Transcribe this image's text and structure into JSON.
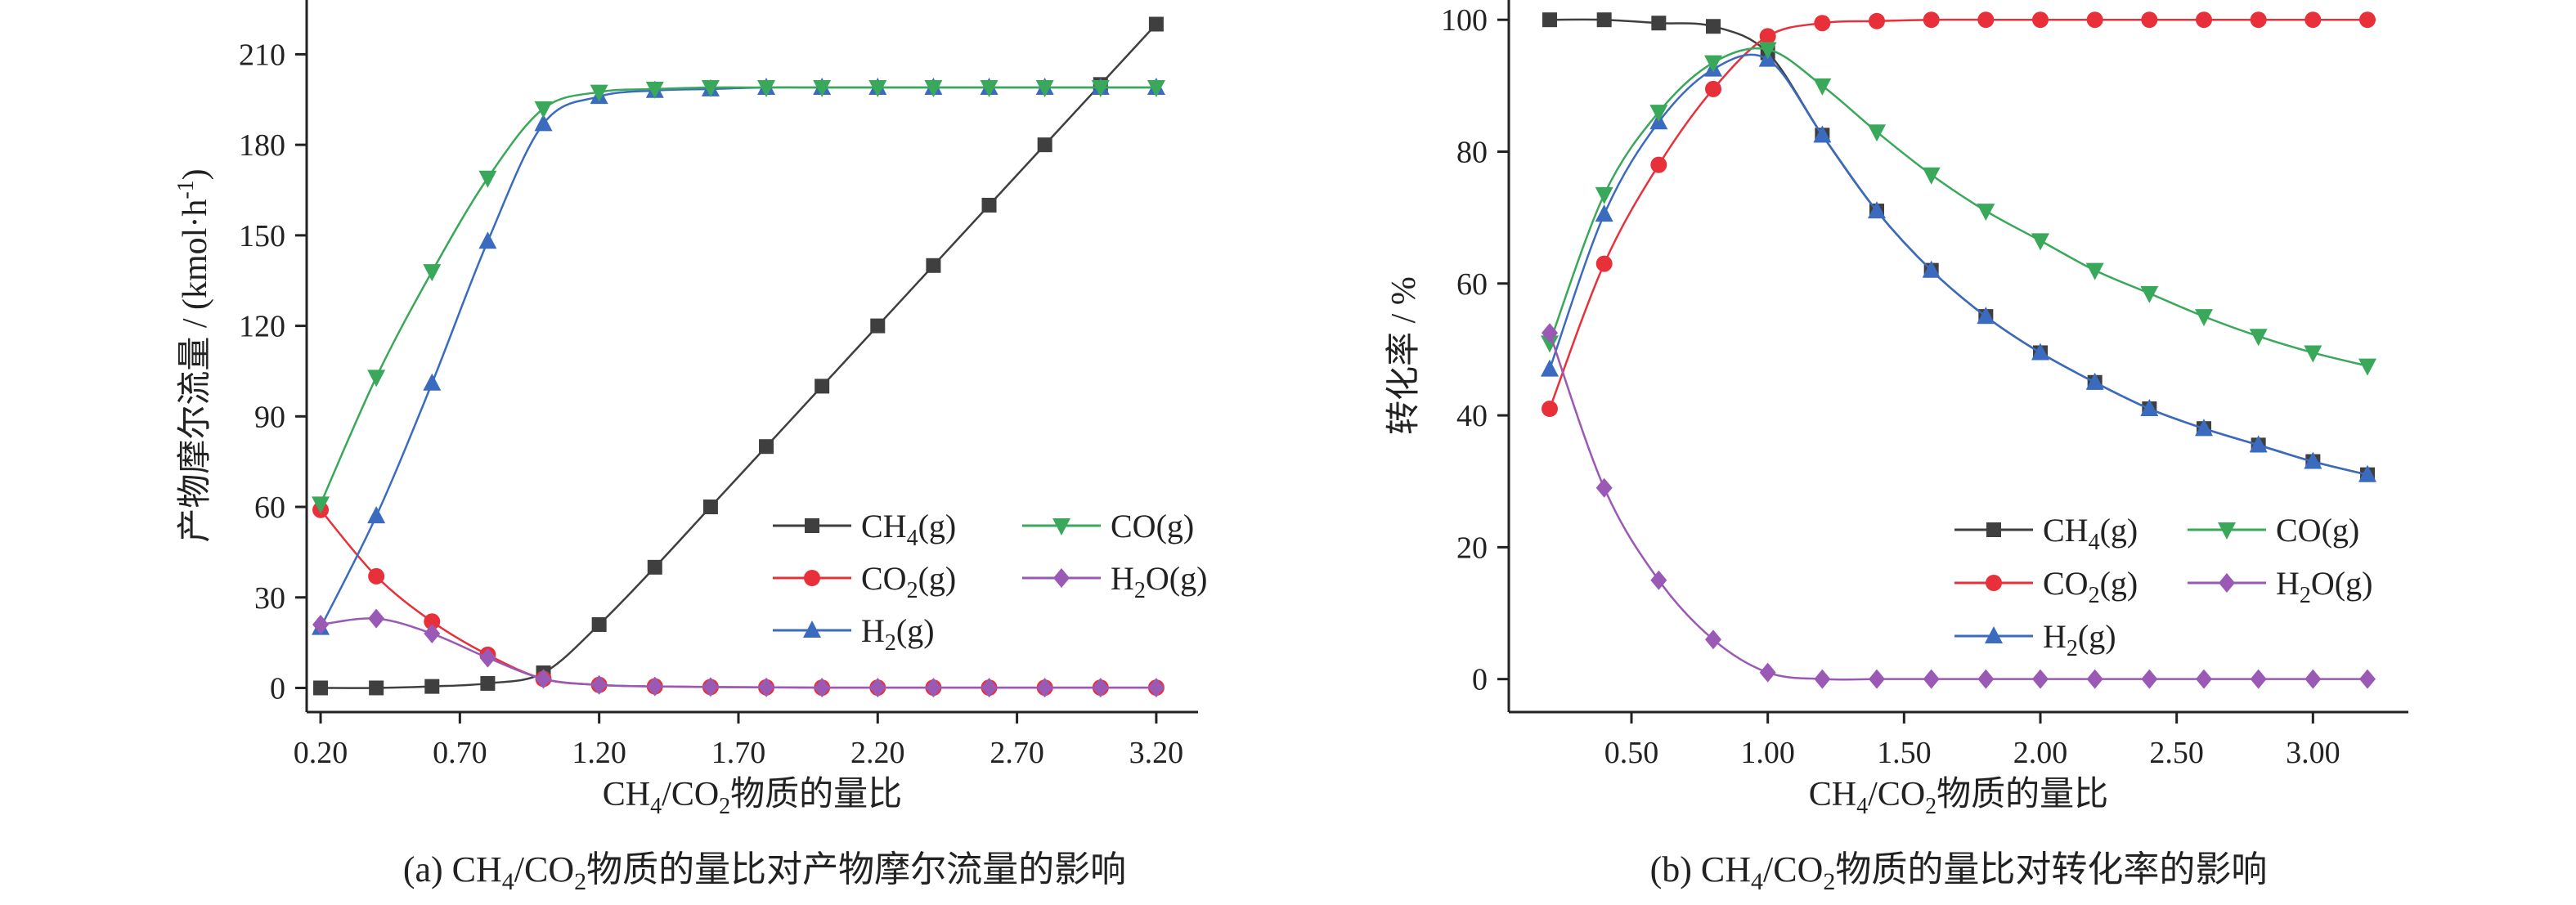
{
  "chart_data": [
    {
      "type": "line",
      "caption": "(a) CH4/CO2物质的量比对产物摩尔流量的影响",
      "xlabel": "CH4/CO2物质的量比",
      "ylabel": "产物摩尔流量 / (kmol·h-1)",
      "xlim": [
        0.15,
        3.35
      ],
      "ylim": [
        -8,
        228
      ],
      "xticks": [
        0.2,
        0.7,
        1.2,
        1.7,
        2.2,
        2.7,
        3.2
      ],
      "xtick_labels": [
        "0.20",
        "0.70",
        "1.20",
        "1.70",
        "2.20",
        "2.70",
        "3.20"
      ],
      "yticks": [
        0,
        30,
        60,
        90,
        120,
        150,
        180,
        210
      ],
      "ytick_labels": [
        "0",
        "30",
        "60",
        "90",
        "120",
        "150",
        "180",
        "210"
      ],
      "x": [
        0.2,
        0.4,
        0.6,
        0.8,
        1.0,
        1.2,
        1.4,
        1.6,
        1.8,
        2.0,
        2.2,
        2.4,
        2.6,
        2.8,
        3.0,
        3.2
      ],
      "legend_position": "bottom-right",
      "series": [
        {
          "name": "CH4(g)",
          "color": "#3f3f3f",
          "marker": "square",
          "values": [
            0,
            0,
            0.5,
            1.5,
            5,
            21,
            40,
            60,
            80,
            100,
            120,
            140,
            160,
            180,
            200,
            220
          ]
        },
        {
          "name": "CO2(g)",
          "color": "#e8303a",
          "marker": "circle",
          "values": [
            59,
            37,
            22,
            11,
            3,
            1,
            0.5,
            0.3,
            0.2,
            0.1,
            0.1,
            0.1,
            0.1,
            0.1,
            0.1,
            0.1
          ]
        },
        {
          "name": "H2(g)",
          "color": "#3a6bbf",
          "marker": "triangle-up",
          "values": [
            20,
            57,
            101,
            148,
            187,
            196,
            198,
            198.5,
            199,
            199,
            199,
            199,
            199,
            199,
            199,
            199
          ]
        },
        {
          "name": "CO(g)",
          "color": "#3aa85a",
          "marker": "triangle-down",
          "values": [
            61,
            103,
            138,
            169,
            192,
            197.5,
            198.5,
            199,
            199,
            199,
            199,
            199,
            199,
            199,
            199,
            199
          ]
        },
        {
          "name": "H2O(g)",
          "color": "#9b59b6",
          "marker": "diamond",
          "values": [
            21,
            23,
            18,
            10,
            3,
            1,
            0.5,
            0.3,
            0.2,
            0.1,
            0.1,
            0.1,
            0.1,
            0.1,
            0.1,
            0.1
          ]
        }
      ]
    },
    {
      "type": "line",
      "caption": "(b) CH4/CO2物质的量比对转化率的影响",
      "xlabel": "CH4/CO2物质的量比",
      "ylabel": "转化率 / %",
      "xlim": [
        0.05,
        3.35
      ],
      "ylim": [
        -5,
        103
      ],
      "xticks": [
        0.5,
        1.0,
        1.5,
        2.0,
        2.5,
        3.0
      ],
      "xtick_labels": [
        "0.50",
        "1.00",
        "1.50",
        "2.00",
        "2.50",
        "3.00"
      ],
      "yticks": [
        0,
        20,
        40,
        60,
        80,
        100
      ],
      "ytick_labels": [
        "0",
        "20",
        "40",
        "60",
        "80",
        "100"
      ],
      "x": [
        0.2,
        0.4,
        0.6,
        0.8,
        1.0,
        1.2,
        1.4,
        1.6,
        1.8,
        2.0,
        2.2,
        2.4,
        2.6,
        2.8,
        3.0,
        3.2
      ],
      "legend_position": "bottom-right",
      "series": [
        {
          "name": "CH4(g)",
          "color": "#3f3f3f",
          "marker": "square",
          "values": [
            100,
            100,
            99.5,
            99,
            95,
            82.5,
            71,
            62,
            55,
            49.5,
            45,
            41,
            38,
            35.5,
            33,
            31
          ]
        },
        {
          "name": "CO2(g)",
          "color": "#e8303a",
          "marker": "circle",
          "values": [
            41,
            63,
            78,
            89.5,
            97.5,
            99.5,
            99.8,
            100,
            100,
            100,
            100,
            100,
            100,
            100,
            100,
            100
          ]
        },
        {
          "name": "H2(g)",
          "color": "#3a6bbf",
          "marker": "triangle-up",
          "values": [
            47,
            70.5,
            84.5,
            92.5,
            94,
            82.5,
            71,
            62,
            55,
            49.5,
            45,
            41,
            38,
            35.5,
            33,
            31
          ]
        },
        {
          "name": "CO(g)",
          "color": "#3aa85a",
          "marker": "triangle-down",
          "values": [
            51,
            73.5,
            86,
            93.5,
            95.5,
            90,
            83,
            76.5,
            71,
            66.5,
            62,
            58.5,
            55,
            52,
            49.5,
            47.5
          ]
        },
        {
          "name": "H2O(g)",
          "color": "#9b59b6",
          "marker": "diamond",
          "values": [
            52.5,
            29,
            15,
            6,
            1,
            0,
            0,
            0,
            0,
            0,
            0,
            0,
            0,
            0,
            0,
            0
          ]
        }
      ]
    }
  ]
}
